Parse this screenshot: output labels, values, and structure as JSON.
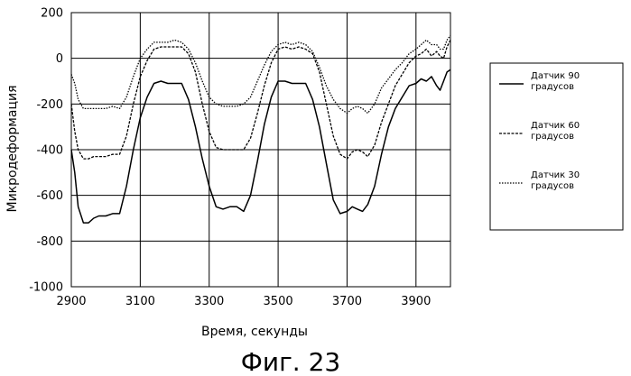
{
  "chart_data": {
    "type": "line",
    "xlabel": "Время, секунды",
    "ylabel": "Микродеформация",
    "caption": "Фиг. 23",
    "xlim": [
      2900,
      4000
    ],
    "ylim": [
      -1000,
      200
    ],
    "xticks": [
      "2900",
      "3100",
      "3300",
      "3500",
      "3700",
      "3900"
    ],
    "xtick_values": [
      2900,
      3100,
      3300,
      3500,
      3700,
      3900
    ],
    "yticks": [
      "200",
      "0",
      "-200",
      "-400",
      "-600",
      "-800",
      "-1000"
    ],
    "ytick_values": [
      200,
      0,
      -200,
      -400,
      -600,
      -800,
      -1000
    ],
    "grid": true,
    "legend_position": "right",
    "series": [
      {
        "name": "Датчик 90 градусов",
        "name_lines": [
          "Датчик 90",
          "градусов"
        ],
        "style": "solid",
        "x": [
          2900,
          2910,
          2920,
          2935,
          2950,
          2965,
          2980,
          3000,
          3020,
          3040,
          3060,
          3080,
          3100,
          3120,
          3140,
          3160,
          3180,
          3200,
          3220,
          3240,
          3260,
          3280,
          3300,
          3320,
          3340,
          3360,
          3380,
          3400,
          3420,
          3440,
          3460,
          3480,
          3500,
          3520,
          3540,
          3560,
          3580,
          3600,
          3620,
          3640,
          3660,
          3680,
          3700,
          3715,
          3730,
          3745,
          3760,
          3780,
          3800,
          3820,
          3840,
          3860,
          3880,
          3900,
          3915,
          3930,
          3945,
          3960,
          3970,
          3980,
          3990,
          4000
        ],
        "y": [
          -400,
          -500,
          -650,
          -720,
          -720,
          -700,
          -690,
          -690,
          -680,
          -680,
          -560,
          -400,
          -260,
          -170,
          -110,
          -100,
          -110,
          -110,
          -110,
          -180,
          -300,
          -440,
          -560,
          -650,
          -660,
          -650,
          -650,
          -670,
          -600,
          -450,
          -290,
          -170,
          -100,
          -100,
          -110,
          -110,
          -110,
          -180,
          -300,
          -460,
          -620,
          -680,
          -670,
          -650,
          -660,
          -670,
          -640,
          -560,
          -420,
          -300,
          -220,
          -170,
          -120,
          -110,
          -90,
          -100,
          -80,
          -120,
          -140,
          -100,
          -60,
          -50
        ]
      },
      {
        "name": "Датчик 60 градусов",
        "name_lines": [
          "Датчик 60",
          "градусов"
        ],
        "style": "dashed",
        "x": [
          2900,
          2910,
          2920,
          2935,
          2950,
          2965,
          2980,
          3000,
          3020,
          3040,
          3060,
          3080,
          3100,
          3120,
          3140,
          3160,
          3180,
          3200,
          3220,
          3240,
          3260,
          3280,
          3300,
          3320,
          3340,
          3360,
          3380,
          3400,
          3420,
          3440,
          3460,
          3480,
          3500,
          3520,
          3540,
          3560,
          3580,
          3600,
          3620,
          3640,
          3660,
          3680,
          3700,
          3715,
          3730,
          3745,
          3760,
          3780,
          3800,
          3820,
          3840,
          3860,
          3880,
          3900,
          3915,
          3930,
          3945,
          3960,
          3970,
          3980,
          3990,
          4000
        ],
        "y": [
          -200,
          -320,
          -400,
          -440,
          -440,
          -430,
          -430,
          -430,
          -420,
          -420,
          -340,
          -200,
          -80,
          -10,
          40,
          50,
          50,
          50,
          50,
          20,
          -60,
          -200,
          -320,
          -390,
          -400,
          -400,
          -400,
          -400,
          -350,
          -240,
          -120,
          -20,
          40,
          50,
          40,
          50,
          40,
          20,
          -60,
          -200,
          -340,
          -420,
          -440,
          -410,
          -400,
          -410,
          -430,
          -380,
          -280,
          -200,
          -120,
          -70,
          -20,
          10,
          20,
          40,
          10,
          30,
          10,
          0,
          50,
          80
        ]
      },
      {
        "name": "Датчик 30 градусов",
        "name_lines": [
          "Датчик 30",
          "градусов"
        ],
        "style": "dotted",
        "x": [
          2900,
          2910,
          2920,
          2935,
          2950,
          2965,
          2980,
          3000,
          3020,
          3040,
          3060,
          3080,
          3100,
          3120,
          3140,
          3160,
          3180,
          3200,
          3220,
          3240,
          3260,
          3280,
          3300,
          3320,
          3340,
          3360,
          3380,
          3400,
          3420,
          3440,
          3460,
          3480,
          3500,
          3520,
          3540,
          3560,
          3580,
          3600,
          3620,
          3640,
          3660,
          3680,
          3700,
          3715,
          3730,
          3745,
          3760,
          3780,
          3800,
          3820,
          3840,
          3860,
          3880,
          3900,
          3915,
          3930,
          3945,
          3960,
          3970,
          3980,
          3990,
          4000
        ],
        "y": [
          -70,
          -110,
          -180,
          -220,
          -220,
          -220,
          -220,
          -220,
          -210,
          -220,
          -170,
          -80,
          0,
          40,
          70,
          70,
          70,
          80,
          70,
          40,
          -20,
          -100,
          -170,
          -200,
          -210,
          -210,
          -210,
          -200,
          -170,
          -100,
          -30,
          30,
          60,
          70,
          60,
          70,
          60,
          30,
          -40,
          -120,
          -180,
          -220,
          -240,
          -220,
          -210,
          -220,
          -240,
          -200,
          -130,
          -90,
          -50,
          -20,
          20,
          40,
          60,
          80,
          60,
          60,
          40,
          40,
          80,
          100
        ]
      }
    ]
  }
}
